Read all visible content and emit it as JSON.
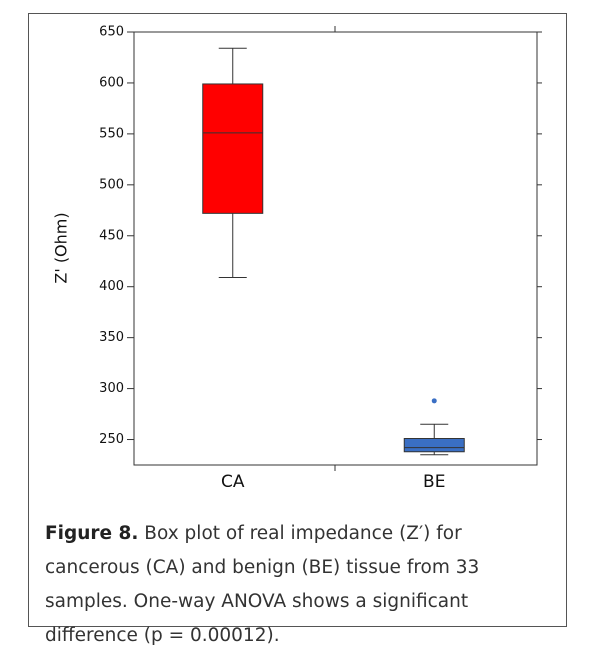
{
  "chart_data": {
    "type": "box",
    "y_label": "Z' (Ohm)",
    "categories": [
      "CA",
      "BE"
    ],
    "colors": [
      "#ff0000",
      "#3a6fc4"
    ],
    "boxes": [
      {
        "whislo": 409,
        "q1": 472,
        "med": 551,
        "q3": 599,
        "whishi": 634,
        "fliers": []
      },
      {
        "whislo": 235,
        "q1": 238,
        "med": 242,
        "q3": 251,
        "whishi": 265,
        "fliers": [
          288
        ]
      }
    ],
    "ylim": [
      225,
      650
    ],
    "yticks": [
      250,
      300,
      350,
      400,
      450,
      500,
      550,
      600,
      650
    ]
  },
  "caption": {
    "label": "Figure 8.",
    "text": " Box plot of real impedance (Z′) for cancerous (CA) and benign (BE) tissue from 33 samples. One-way ANOVA shows a significant difference (p = 0.00012)."
  }
}
